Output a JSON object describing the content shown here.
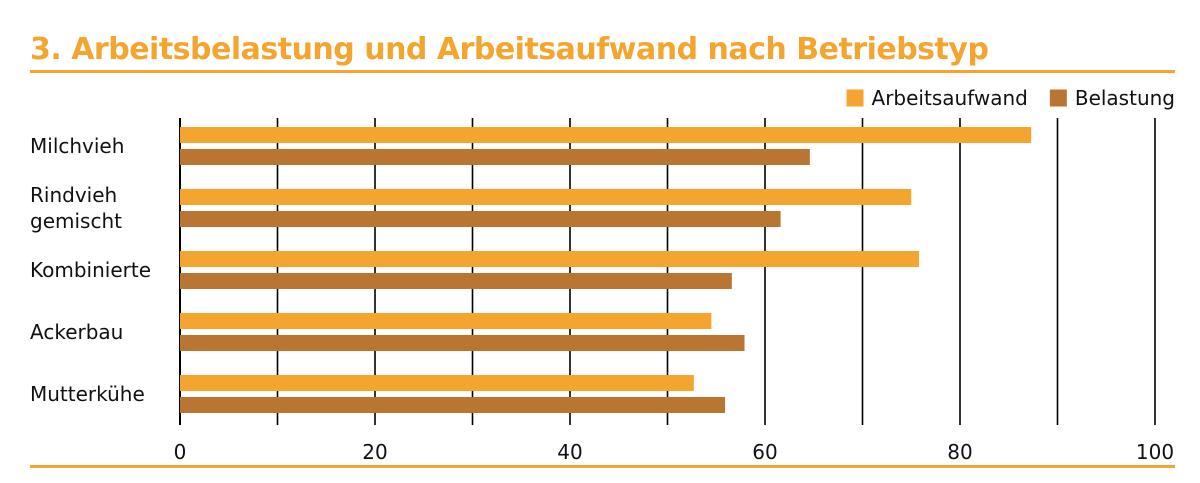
{
  "chart_data": {
    "type": "bar",
    "orientation": "horizontal",
    "title": "3. Arbeitsbelastung und Arbeitsaufwand nach Betriebstyp",
    "categories": [
      [
        "Milchvieh"
      ],
      [
        "Rindvieh",
        "gemischt"
      ],
      [
        "Kombinierte"
      ],
      [
        "Ackerbau"
      ],
      [
        "Mutterkühe"
      ]
    ],
    "series": [
      {
        "name": "Arbeitsaufwand",
        "color": "#f3a530",
        "values": [
          87.3,
          75.0,
          75.8,
          54.5,
          52.7
        ]
      },
      {
        "name": "Belastung",
        "color": "#b97532",
        "values": [
          64.6,
          61.6,
          56.6,
          57.9,
          55.9
        ]
      }
    ],
    "xlim": [
      0,
      100
    ],
    "xticks": [
      0,
      20,
      40,
      60,
      80,
      100
    ],
    "gridlines_every": 10,
    "grid": true,
    "legend_position": "top-right",
    "xlabel": "",
    "ylabel": ""
  },
  "colors": {
    "accent": "#f3a530",
    "secondary": "#b97532",
    "grid": "#000000"
  }
}
